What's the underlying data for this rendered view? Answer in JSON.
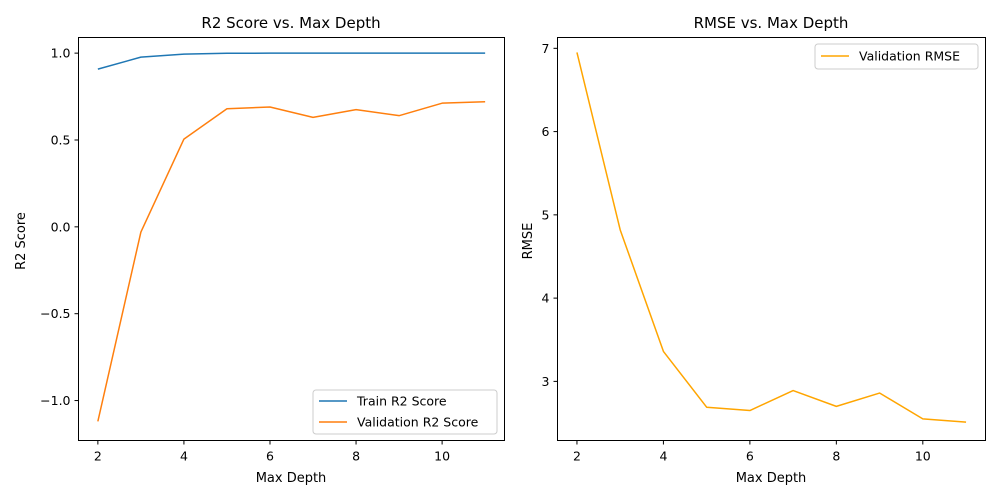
{
  "chart_data": [
    {
      "type": "line",
      "title": "R2 Score vs. Max Depth",
      "xlabel": "Max Depth",
      "ylabel": "R2 Score",
      "xlim": [
        1.55,
        11.45
      ],
      "ylim": [
        -1.23,
        1.09
      ],
      "xticks": [
        2,
        4,
        6,
        8,
        10
      ],
      "yticks": [
        -1.0,
        -0.5,
        0.0,
        0.5,
        1.0
      ],
      "xtick_labels": [
        "2",
        "4",
        "6",
        "8",
        "10"
      ],
      "ytick_labels": [
        "−1.0",
        "−0.5",
        "0.0",
        "0.5",
        "1.0"
      ],
      "grid": false,
      "legend": "lower right",
      "x": [
        2,
        3,
        4,
        5,
        6,
        7,
        8,
        9,
        10,
        11
      ],
      "series": [
        {
          "name": "Train R2 Score",
          "color": "#1f77b4",
          "values": [
            0.908,
            0.977,
            0.994,
            0.999,
            1.0,
            1.0,
            1.0,
            1.0,
            1.0,
            1.0
          ]
        },
        {
          "name": "Validation R2 Score",
          "color": "#ff7f0e",
          "values": [
            -1.12,
            -0.03,
            0.505,
            0.68,
            0.69,
            0.63,
            0.675,
            0.64,
            0.712,
            0.72
          ]
        }
      ]
    },
    {
      "type": "line",
      "title": "RMSE vs. Max Depth",
      "xlabel": "Max Depth",
      "ylabel": "RMSE",
      "xlim": [
        1.55,
        11.45
      ],
      "ylim": [
        2.29,
        7.13
      ],
      "xticks": [
        2,
        4,
        6,
        8,
        10
      ],
      "yticks": [
        3,
        4,
        5,
        6,
        7
      ],
      "xtick_labels": [
        "2",
        "4",
        "6",
        "8",
        "10"
      ],
      "ytick_labels": [
        "3",
        "4",
        "5",
        "6",
        "7"
      ],
      "grid": false,
      "legend": "upper right",
      "x": [
        2,
        3,
        4,
        5,
        6,
        7,
        8,
        9,
        10,
        11
      ],
      "series": [
        {
          "name": "Validation RMSE",
          "color": "#ffa500",
          "values": [
            6.95,
            4.82,
            3.36,
            2.69,
            2.65,
            2.89,
            2.7,
            2.86,
            2.55,
            2.51
          ]
        }
      ]
    }
  ]
}
